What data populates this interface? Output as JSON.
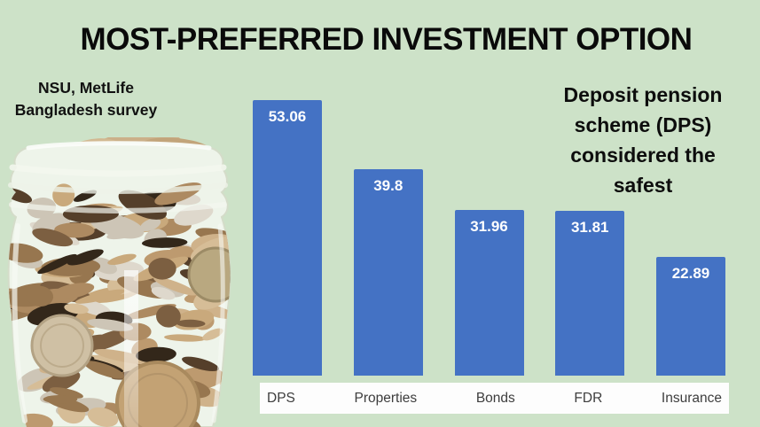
{
  "page": {
    "background": "#cde2c8"
  },
  "title": "MOST-PREFERRED INVESTMENT OPTION",
  "left_note": {
    "lines": [
      "NSU, MetLife",
      "Bangladesh survey"
    ]
  },
  "right_note": {
    "lines": [
      "Deposit pension",
      "scheme (DPS)",
      "considered the",
      "safest"
    ]
  },
  "illustration": {
    "name": "jar-of-coins"
  },
  "chart_data": {
    "type": "bar",
    "categories": [
      "DPS",
      "Properties",
      "Bonds",
      "FDR",
      "Insurance"
    ],
    "values": [
      53.06,
      39.8,
      31.96,
      31.81,
      22.89
    ],
    "value_labels": [
      "53.06",
      "39.8",
      "31.96",
      "31.81",
      "22.89"
    ],
    "title": "MOST-PREFERRED INVESTMENT OPTION",
    "xlabel": "",
    "ylabel": "",
    "ylim": [
      0,
      55
    ],
    "grid": false,
    "legend_position": "none",
    "bar_color": "#4472c4",
    "value_label_color": "#ffffff",
    "axis_strip_background": "#fdfdfd",
    "axis_label_color": "#3d3d3d"
  }
}
